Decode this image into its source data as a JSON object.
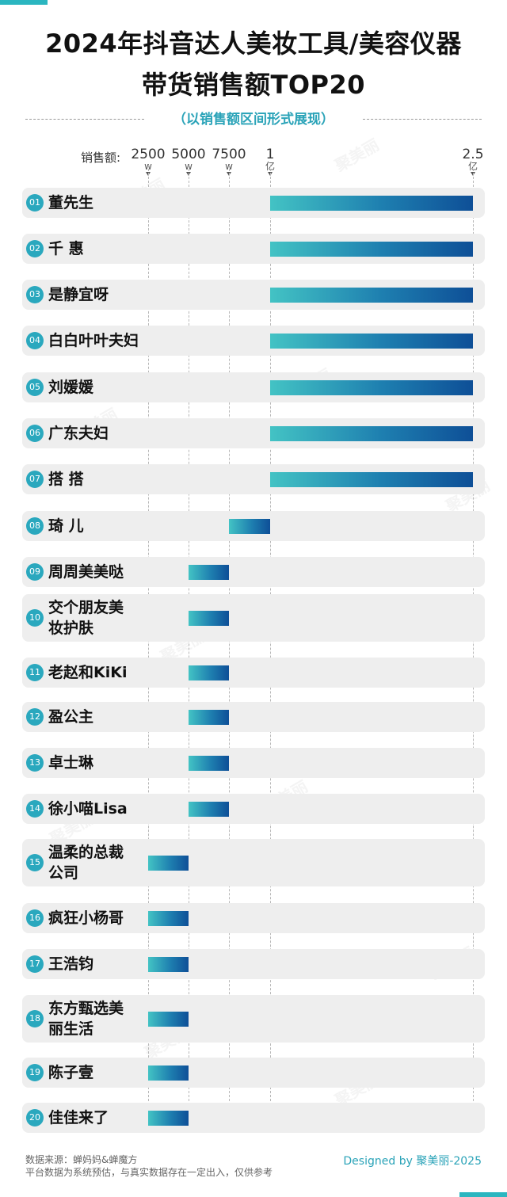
{
  "title_line1": "2024年抖音达人美妆工具/美容仪器",
  "title_line2": "带货销售额TOP20",
  "subtitle": "（以销售额区间形式展现）",
  "watermark": "聚美丽",
  "footer": {
    "source": "数据来源：蝉妈妈&蝉魔方",
    "note": "平台数据为系统预估，与真实数据存在一定出入，仅供参考",
    "credit": "Designed by 聚美丽-2025"
  },
  "chart_data": {
    "type": "bar",
    "title": "2024年抖音达人美妆工具/美容仪器带货销售额TOP20",
    "orientation": "horizontal-range",
    "axis_label": "销售额:",
    "ticks": [
      {
        "value": 2500,
        "num": "2500",
        "unit": "w"
      },
      {
        "value": 5000,
        "num": "5000",
        "unit": "w"
      },
      {
        "value": 7500,
        "num": "7500",
        "unit": "w"
      },
      {
        "value": 10000,
        "num": "1",
        "unit": "亿"
      },
      {
        "value": 25000,
        "num": "2.5",
        "unit": "亿"
      }
    ],
    "unit_note": "values in 万 (w)",
    "categories": [
      {
        "rank": "01",
        "name": "董先生",
        "range": [
          10000,
          25000
        ]
      },
      {
        "rank": "02",
        "name": "千 惠",
        "range": [
          10000,
          25000
        ]
      },
      {
        "rank": "03",
        "name": "是静宜呀",
        "range": [
          10000,
          25000
        ]
      },
      {
        "rank": "04",
        "name": "白白叶叶夫妇",
        "range": [
          10000,
          25000
        ]
      },
      {
        "rank": "05",
        "name": "刘媛媛",
        "range": [
          10000,
          25000
        ]
      },
      {
        "rank": "06",
        "name": "广东夫妇",
        "range": [
          10000,
          25000
        ]
      },
      {
        "rank": "07",
        "name": "搭 搭",
        "range": [
          10000,
          25000
        ]
      },
      {
        "rank": "08",
        "name": "琦 儿",
        "range": [
          7500,
          10000
        ]
      },
      {
        "rank": "09",
        "name": "周周美美哒",
        "range": [
          5000,
          7500
        ]
      },
      {
        "rank": "10",
        "name": "交个朋友美\n妆护肤",
        "range": [
          5000,
          7500
        ]
      },
      {
        "rank": "11",
        "name": "老赵和KiKi",
        "range": [
          5000,
          7500
        ]
      },
      {
        "rank": "12",
        "name": "盈公主",
        "range": [
          5000,
          7500
        ]
      },
      {
        "rank": "13",
        "name": "卓士琳",
        "range": [
          5000,
          7500
        ]
      },
      {
        "rank": "14",
        "name": "徐小喵Lisa",
        "range": [
          5000,
          7500
        ]
      },
      {
        "rank": "15",
        "name": "温柔的总裁\n公司",
        "range": [
          2500,
          5000
        ]
      },
      {
        "rank": "16",
        "name": "疯狂小杨哥",
        "range": [
          2500,
          5000
        ]
      },
      {
        "rank": "17",
        "name": "王浩钧",
        "range": [
          2500,
          5000
        ]
      },
      {
        "rank": "18",
        "name": "东方甄选美\n丽生活",
        "range": [
          2500,
          5000
        ]
      },
      {
        "rank": "19",
        "name": "陈子壹",
        "range": [
          2500,
          5000
        ]
      },
      {
        "rank": "20",
        "name": "佳佳来了",
        "range": [
          2500,
          5000
        ]
      }
    ]
  }
}
